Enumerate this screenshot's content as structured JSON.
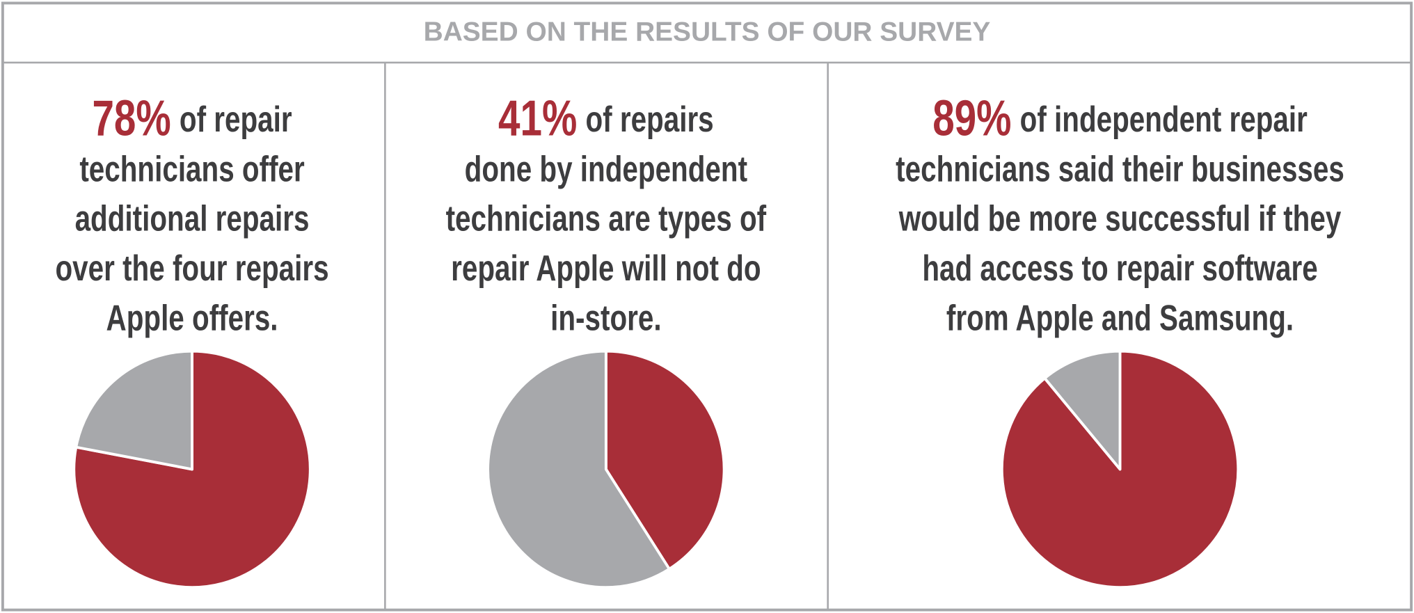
{
  "header": {
    "title": "BASED ON THE RESULTS OF OUR SURVEY"
  },
  "chart_data": [
    {
      "type": "pie",
      "values": [
        78,
        22
      ],
      "value_labels": [
        "78%",
        null
      ],
      "colors": [
        "#a82e38",
        "#a7a8ab"
      ],
      "text_lines": [
        "of repair",
        "technicians offer",
        "additional repairs",
        "over the four repairs",
        "Apple offers."
      ]
    },
    {
      "type": "pie",
      "values": [
        41,
        59
      ],
      "value_labels": [
        "41%",
        null
      ],
      "colors": [
        "#a82e38",
        "#a7a8ab"
      ],
      "text_lines": [
        "of repairs",
        "done by independent",
        "technicians are types of",
        "repair Apple will not do",
        "in-store."
      ]
    },
    {
      "type": "pie",
      "values": [
        89,
        11
      ],
      "value_labels": [
        "89%",
        null
      ],
      "colors": [
        "#a82e38",
        "#a7a8ab"
      ],
      "text_lines": [
        "of independent repair",
        "technicians said their businesses",
        "would be more successful if they",
        "had access to repair software",
        "from Apple and Samsung."
      ]
    }
  ]
}
